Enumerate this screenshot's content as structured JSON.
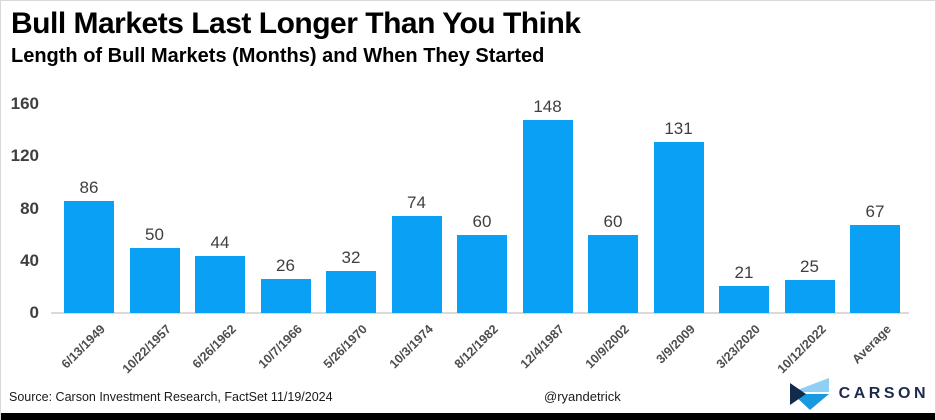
{
  "header": {
    "title": "Bull Markets Last Longer Than You Think",
    "subtitle": "Length of Bull Markets (Months) and When They Started"
  },
  "chart_data": {
    "type": "bar",
    "title": "Bull Markets Last Longer Than You Think",
    "subtitle": "Length of Bull Markets (Months) and When They Started",
    "categories": [
      "6/13/1949",
      "10/22/1957",
      "6/26/1962",
      "10/7/1966",
      "5/26/1970",
      "10/3/1974",
      "8/12/1982",
      "12/4/1987",
      "10/9/2002",
      "3/9/2009",
      "3/23/2020",
      "10/12/2022",
      "Average"
    ],
    "values": [
      86,
      50,
      44,
      26,
      32,
      74,
      60,
      148,
      60,
      131,
      21,
      25,
      67
    ],
    "xlabel": "",
    "ylabel": "",
    "ylim": [
      0,
      160
    ],
    "yticks": [
      0,
      40,
      80,
      120,
      160
    ],
    "grid": false,
    "legend": "none",
    "data_labels": true,
    "bar_color": "#09a0f6"
  },
  "footer": {
    "source": "Source: Carson Investment Research, FactSet 11/19/2024",
    "handle": "@ryandetrick",
    "brand": "CARSON"
  },
  "colors": {
    "bar": "#09a0f6",
    "axis_line": "#dadada",
    "tick_text": "#3f3f3f",
    "xtick_text": "#4d4d4d",
    "brand_navy": "#1b2b4d",
    "logo_light_blue": "#8ecff3",
    "logo_mid_blue": "#1899e0",
    "logo_dark_navy": "#122a4c",
    "bottom_bar": "#000000"
  }
}
